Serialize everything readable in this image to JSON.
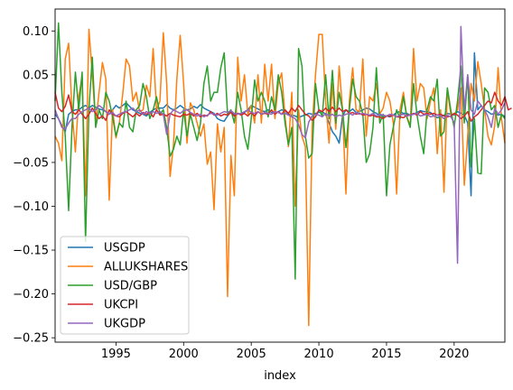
{
  "chart_data": {
    "type": "line",
    "xlabel": "index",
    "x_start": 1990.5,
    "x_end": 2023.75,
    "x_step": 0.25,
    "xlim": [
      1990.5,
      2023.75
    ],
    "ylim": [
      -0.255,
      0.125
    ],
    "xticks": [
      1995,
      2000,
      2005,
      2010,
      2015,
      2020
    ],
    "yticks": [
      0.1,
      0.05,
      0.0,
      -0.05,
      -0.1,
      -0.15,
      -0.2,
      -0.25
    ],
    "legend_position": "lower-left",
    "series": [
      {
        "name": "USGDP",
        "color": "#1f77b4",
        "values": [
          0.005,
          0.0,
          -0.008,
          -0.015,
          0.005,
          0.008,
          0.01,
          0.01,
          0.013,
          0.015,
          0.012,
          0.015,
          0.013,
          0.011,
          0.01,
          0.008,
          0.005,
          0.01,
          0.015,
          0.012,
          0.015,
          0.018,
          0.014,
          0.01,
          0.008,
          0.006,
          0.005,
          0.003,
          0.007,
          0.01,
          0.012,
          0.012,
          0.012,
          0.016,
          0.012,
          0.01,
          0.012,
          0.015,
          0.012,
          0.01,
          0.011,
          0.014,
          0.012,
          0.016,
          0.012,
          0.01,
          0.008,
          0.006,
          0.0,
          -0.002,
          -0.003,
          0.003,
          0.008,
          0.004,
          0.006,
          0.005,
          0.007,
          0.01,
          0.015,
          0.013,
          0.011,
          0.009,
          0.008,
          0.01,
          0.007,
          0.006,
          0.008,
          0.01,
          0.009,
          0.005,
          0.004,
          0.003,
          0.001,
          0.003,
          0.004,
          0.006,
          0.005,
          0.006,
          0.007,
          0.008,
          0.005,
          -0.005,
          -0.015,
          -0.02,
          -0.028,
          0.003,
          0.01,
          0.008,
          0.011,
          0.007,
          0.008,
          0.01,
          0.012,
          0.011,
          0.008,
          0.006,
          0.004,
          0.003,
          0.003,
          0.002,
          0.004,
          0.007,
          0.008,
          0.006,
          0.006,
          0.004,
          0.005,
          0.007,
          0.009,
          0.008,
          0.008,
          0.007,
          0.003,
          0.001,
          0.002,
          0.004,
          0.006,
          0.005,
          0.004,
          0.008,
          0.006,
          0.004,
          -0.005,
          -0.088,
          0.075,
          0.01,
          0.015,
          0.01,
          0.008,
          0.005,
          0.006,
          0.004,
          0.005,
          0.002
        ]
      },
      {
        "name": "ALLUKSHARES",
        "color": "#ff7f0e",
        "values": [
          -0.02,
          -0.028,
          -0.048,
          0.068,
          0.086,
          0.01,
          -0.038,
          0.025,
          0.048,
          -0.088,
          0.102,
          0.05,
          -0.005,
          0.03,
          0.064,
          0.045,
          -0.093,
          0.01,
          -0.022,
          -0.005,
          0.028,
          0.068,
          0.06,
          0.02,
          0.03,
          0.008,
          0.01,
          0.038,
          0.025,
          0.08,
          0.01,
          0.02,
          0.098,
          0.04,
          -0.066,
          -0.03,
          0.045,
          0.095,
          0.04,
          -0.028,
          0.018,
          0.01,
          -0.005,
          -0.02,
          -0.006,
          -0.052,
          -0.038,
          -0.104,
          -0.006,
          -0.038,
          -0.01,
          -0.203,
          -0.042,
          -0.088,
          0.07,
          0.02,
          0.05,
          0.005,
          0.015,
          -0.005,
          0.05,
          -0.005,
          0.062,
          0.02,
          0.062,
          0.0,
          0.04,
          0.052,
          0.002,
          -0.032,
          0.03,
          -0.1,
          0.01,
          -0.02,
          -0.032,
          -0.236,
          -0.01,
          0.05,
          0.096,
          0.096,
          0.02,
          -0.028,
          0.04,
          -0.012,
          0.06,
          0.01,
          -0.086,
          0.02,
          0.058,
          0.01,
          0.008,
          0.068,
          -0.02,
          0.025,
          0.02,
          0.04,
          0.005,
          0.012,
          0.03,
          0.02,
          -0.005,
          -0.086,
          0.01,
          0.03,
          0.002,
          -0.008,
          0.08,
          0.02,
          0.04,
          0.035,
          0.0,
          0.02,
          0.035,
          -0.04,
          0.01,
          -0.084,
          0.033,
          0.005,
          0.005,
          0.01,
          0.035,
          -0.076,
          -0.02,
          0.04,
          0.02,
          0.065,
          0.04,
          0.01,
          -0.02,
          -0.03,
          -0.008,
          0.058,
          0.0,
          -0.028
        ]
      },
      {
        "name": "USD/GBP",
        "color": "#2ca02c",
        "values": [
          0.02,
          0.109,
          0.03,
          -0.02,
          -0.105,
          -0.01,
          0.053,
          0.01,
          0.053,
          -0.14,
          0.01,
          0.07,
          -0.01,
          0.01,
          0.0,
          0.03,
          0.02,
          0.002,
          -0.02,
          -0.005,
          -0.01,
          0.02,
          -0.01,
          -0.015,
          0.01,
          0.015,
          0.04,
          0.025,
          0.0,
          0.01,
          0.025,
          0.005,
          0.01,
          -0.01,
          -0.043,
          -0.035,
          -0.02,
          -0.03,
          0.01,
          -0.02,
          0.005,
          -0.01,
          -0.025,
          -0.005,
          0.04,
          0.06,
          0.02,
          0.03,
          0.03,
          0.058,
          0.075,
          0.005,
          0.01,
          -0.005,
          0.03,
          0.01,
          -0.02,
          -0.035,
          0.0,
          0.044,
          0.02,
          0.03,
          0.02,
          0.002,
          0.025,
          0.01,
          0.05,
          0.03,
          -0.005,
          -0.03,
          -0.01,
          -0.183,
          0.08,
          0.06,
          -0.02,
          -0.045,
          -0.04,
          0.04,
          0.01,
          0.003,
          0.05,
          0.0,
          0.055,
          -0.005,
          0.03,
          0.01,
          -0.033,
          0.01,
          0.045,
          0.025,
          0.02,
          0.005,
          -0.05,
          -0.04,
          -0.01,
          0.058,
          -0.005,
          0.005,
          -0.088,
          -0.03,
          -0.01,
          0.01,
          0.0,
          0.025,
          0.002,
          -0.01,
          0.04,
          0.005,
          -0.02,
          -0.04,
          0.01,
          0.025,
          0.02,
          0.045,
          -0.02,
          -0.015,
          0.035,
          0.01,
          -0.01,
          0.02,
          0.06,
          -0.005,
          0.05,
          -0.055,
          0.0,
          -0.062,
          -0.063,
          0.035,
          0.03,
          0.01,
          0.015,
          -0.01,
          0.005,
          0.0
        ]
      },
      {
        "name": "UKCPI",
        "color": "#d62728",
        "values": [
          0.03,
          0.012,
          0.008,
          0.014,
          0.027,
          0.008,
          0.005,
          0.01,
          0.005,
          0.0,
          0.005,
          0.012,
          0.006,
          0.0,
          0.003,
          -0.002,
          0.01,
          0.005,
          0.003,
          0.002,
          0.006,
          0.008,
          0.005,
          0.002,
          0.006,
          0.003,
          0.007,
          0.005,
          0.007,
          0.002,
          0.01,
          0.004,
          0.005,
          0.003,
          0.006,
          0.004,
          0.003,
          0.002,
          0.005,
          0.004,
          0.006,
          0.003,
          0.006,
          0.002,
          0.004,
          0.003,
          0.008,
          0.004,
          0.006,
          0.003,
          0.005,
          0.004,
          0.007,
          0.003,
          0.006,
          0.004,
          0.006,
          0.003,
          0.007,
          0.003,
          0.008,
          0.005,
          0.006,
          0.005,
          0.01,
          0.005,
          0.008,
          0.005,
          0.01,
          0.006,
          0.012,
          0.008,
          0.015,
          0.01,
          0.005,
          0.003,
          -0.002,
          0.002,
          0.01,
          0.008,
          0.012,
          0.008,
          0.013,
          0.008,
          0.012,
          0.008,
          0.01,
          0.006,
          0.007,
          0.005,
          0.006,
          0.004,
          0.005,
          0.003,
          0.004,
          0.002,
          0.002,
          0.0,
          0.003,
          0.003,
          0.004,
          0.002,
          0.002,
          0.001,
          0.004,
          0.004,
          0.006,
          0.004,
          0.008,
          0.005,
          0.006,
          0.005,
          0.006,
          0.004,
          0.005,
          0.003,
          0.002,
          0.003,
          0.006,
          0.004,
          0.0,
          0.003,
          0.008,
          -0.003,
          0.002,
          0.005,
          0.01,
          0.015,
          0.02,
          0.018,
          0.03,
          0.02,
          0.015,
          0.025,
          0.01,
          0.012
        ]
      },
      {
        "name": "UKGDP",
        "color": "#9467bd",
        "values": [
          0.01,
          0.0,
          -0.01,
          -0.012,
          -0.005,
          0.0,
          0.0,
          0.005,
          0.008,
          0.01,
          0.012,
          0.008,
          0.01,
          0.015,
          0.012,
          0.008,
          0.005,
          0.007,
          0.003,
          0.005,
          0.007,
          0.008,
          0.01,
          0.012,
          0.008,
          0.01,
          0.005,
          0.008,
          0.006,
          0.008,
          0.006,
          0.008,
          0.005,
          -0.018,
          0.005,
          0.01,
          0.008,
          0.006,
          0.009,
          0.01,
          0.007,
          0.005,
          0.003,
          0.005,
          0.002,
          0.004,
          0.006,
          0.005,
          0.004,
          0.006,
          0.008,
          0.007,
          0.009,
          0.006,
          0.005,
          0.006,
          0.008,
          0.01,
          0.007,
          0.006,
          0.008,
          0.005,
          0.007,
          0.006,
          0.005,
          0.008,
          0.007,
          0.005,
          0.006,
          0.004,
          0.002,
          0.0,
          -0.007,
          -0.018,
          -0.022,
          -0.004,
          0.003,
          0.005,
          0.004,
          0.002,
          0.006,
          0.003,
          0.005,
          0.002,
          0.004,
          0.003,
          0.005,
          0.006,
          0.004,
          0.007,
          0.005,
          0.006,
          0.005,
          0.004,
          0.006,
          0.003,
          0.005,
          0.004,
          0.003,
          0.005,
          0.004,
          0.002,
          0.004,
          0.005,
          0.003,
          0.004,
          0.005,
          0.006,
          0.003,
          0.004,
          0.005,
          0.002,
          0.003,
          0.004,
          0.003,
          0.0,
          0.004,
          0.002,
          -0.004,
          -0.165,
          0.105,
          0.01,
          0.05,
          0.01,
          0.005,
          0.02,
          0.015,
          0.01,
          0.002,
          -0.01,
          0.012,
          0.005,
          0.01,
          0.018
        ]
      }
    ]
  }
}
